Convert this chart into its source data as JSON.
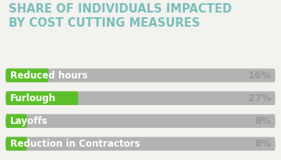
{
  "title_line1": "SHARE OF INDIVIDUALS IMPACTED",
  "title_line2": "BY COST CUTTING MEASURES",
  "title_color": "#7abfbb",
  "categories": [
    "Reduced hours",
    "Furlough",
    "Layoffs",
    "Reduction in Contractors"
  ],
  "values": [
    16,
    27,
    8,
    8
  ],
  "max_val": 100,
  "bar_bg_color": "#b3b3b3",
  "bar_green_color": "#5cbf2a",
  "bar_label_color": "#ffffff",
  "pct_label_color": "#999999",
  "background_color": "#f2f2ee",
  "bar_height": 0.6,
  "bar_label_fontsize": 8.5,
  "pct_fontsize": 9,
  "title_fontsize": 10.5
}
